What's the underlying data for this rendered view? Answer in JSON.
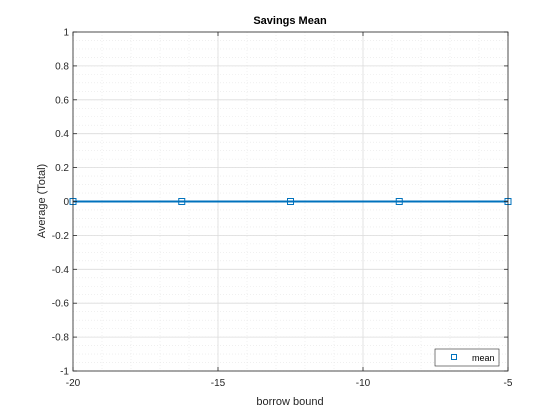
{
  "chart_data": {
    "type": "line",
    "title": "Savings Mean",
    "xlabel": "borrow bound",
    "ylabel": "Average (Total)",
    "xlim": [
      -20,
      -5
    ],
    "ylim": [
      -1,
      1
    ],
    "xticks": [
      -20,
      -15,
      -10,
      -5
    ],
    "yticks": [
      -1,
      -0.8,
      -0.6,
      -0.4,
      -0.2,
      0,
      0.2,
      0.4,
      0.6,
      0.8,
      1
    ],
    "x_tick_labels": [
      "-20",
      "-15",
      "-10",
      "-5"
    ],
    "y_tick_labels": [
      "-1",
      "-0.8",
      "-0.6",
      "-0.4",
      "-0.2",
      "0",
      "0.2",
      "0.4",
      "0.6",
      "0.8",
      "1"
    ],
    "grid": true,
    "minor_grid": true,
    "legend_position": "bottom-right",
    "series": [
      {
        "name": "mean",
        "x": [
          -20,
          -16.25,
          -12.5,
          -8.75,
          -5
        ],
        "y": [
          0,
          0,
          0,
          0,
          0
        ],
        "marker": "square",
        "color": "#0072BD"
      }
    ]
  }
}
